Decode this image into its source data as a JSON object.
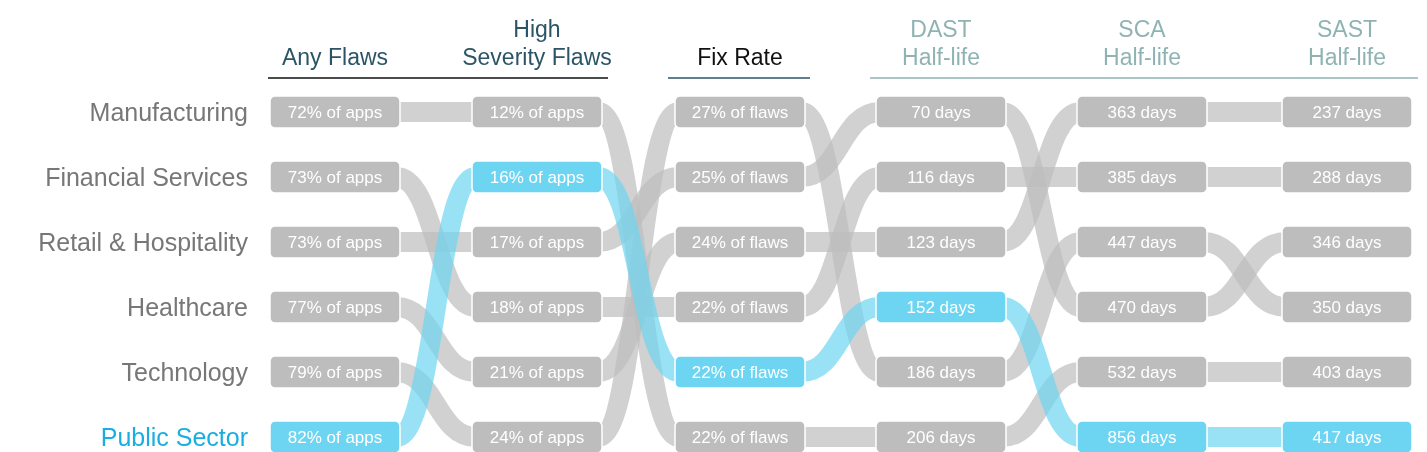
{
  "chart_data": {
    "type": "other",
    "categories": [
      "Any Flaws",
      "High\nSeverity Flaws",
      "Fix Rate",
      "DAST\nHalf-life",
      "SCA\nHalf-life",
      "SAST\nHalf-life"
    ],
    "series": [
      {
        "name": "Financial Services",
        "color": "#bdbdbd",
        "values": [
          73,
          18,
          22,
          116,
          385,
          288
        ],
        "value_labels": [
          "73% of apps",
          "18% of apps",
          "22% of flaws",
          "116 days",
          "385 days",
          "288 days"
        ]
      },
      {
        "name": "Public Sector",
        "color": "#6dd5f2",
        "values": [
          82,
          16,
          22,
          152,
          856,
          417
        ],
        "value_labels": [
          "82% of apps",
          "16% of apps",
          "22% of flaws",
          "152 days",
          "856 days",
          "417 days"
        ]
      },
      {
        "name": "Manufacturing",
        "color": "#bdbdbd",
        "values": [
          72,
          12,
          22,
          206,
          532,
          403
        ],
        "value_labels": [
          "72% of apps",
          "12% of apps",
          "22% of flaws",
          "206 days",
          "532 days",
          "403 days"
        ]
      },
      {
        "name": "Retail & Hospitality",
        "color": "#bdbdbd",
        "values": [
          73,
          17,
          25,
          70,
          470,
          346
        ],
        "value_labels": [
          "73% of apps",
          "17% of apps",
          "25% of flaws",
          "70 days",
          "470 days",
          "346 days"
        ]
      },
      {
        "name": "Healthcare",
        "color": "#bdbdbd",
        "values": [
          77,
          21,
          24,
          123,
          363,
          237
        ],
        "value_labels": [
          "77% of apps",
          "21% of apps",
          "24% of flaws",
          "123 days",
          "363 days",
          "237 days"
        ]
      },
      {
        "name": "Technology",
        "color": "#bdbdbd",
        "values": [
          79,
          24,
          27,
          186,
          447,
          350
        ],
        "value_labels": [
          "79% of apps",
          "24% of apps",
          "27% of flaws",
          "186 days",
          "447 days",
          "350 days"
        ]
      }
    ]
  }
}
